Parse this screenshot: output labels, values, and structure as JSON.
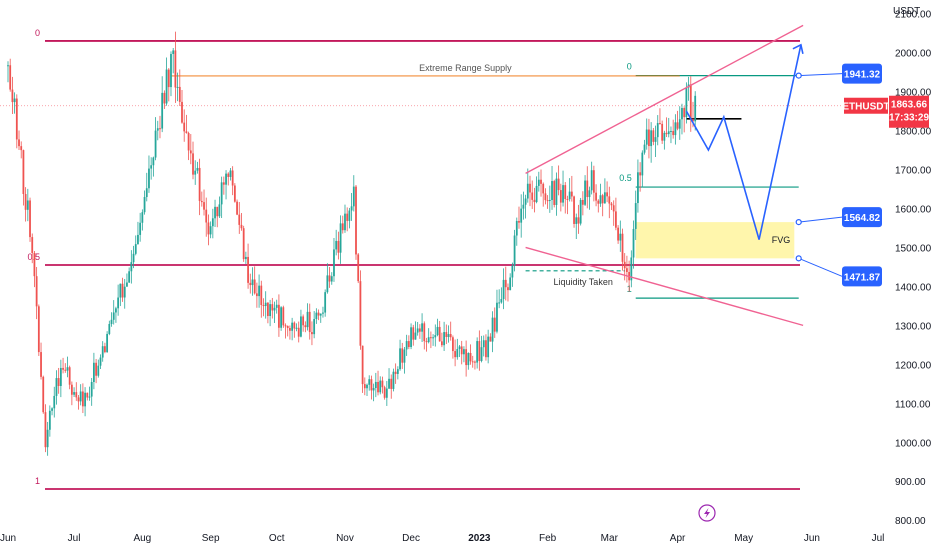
{
  "chart_data": {
    "type": "candlestick",
    "unit_label": "USDT",
    "symbol": "ETHUSDT",
    "current_price": "1863.66",
    "countdown": "17:33:29",
    "y_ticks": [
      2100,
      2000,
      1900,
      1800,
      1700,
      1600,
      1500,
      1400,
      1300,
      1200,
      1100,
      1000,
      900,
      800
    ],
    "y_tick_labels": [
      "2100.00",
      "2000.00",
      "1900.00",
      "1800.00",
      "1700.00",
      "1600.00",
      "1500.00",
      "1400.00",
      "1300.00",
      "1200.00",
      "1100.00",
      "1000.00",
      "900.00",
      "800.00"
    ],
    "ylim": [
      780,
      2135
    ],
    "x_labels": [
      "Jun",
      "Jul",
      "Aug",
      "Sep",
      "Oct",
      "Nov",
      "Dec",
      "2023",
      "Feb",
      "Mar",
      "Apr",
      "May",
      "Jun",
      "Jul"
    ],
    "x_label_dates": [
      "2022-06-01",
      "2022-07-01",
      "2022-08-01",
      "2022-09-01",
      "2022-10-01",
      "2022-11-01",
      "2022-12-01",
      "2023-01-01",
      "2023-02-01",
      "2023-03-01",
      "2023-04-01",
      "2023-05-01",
      "2023-06-01",
      "2023-07-01"
    ],
    "price_anchors": [
      [
        "2022-06-01",
        1950
      ],
      [
        "2022-06-05",
        1800
      ],
      [
        "2022-06-12",
        1500
      ],
      [
        "2022-06-18",
        1000
      ],
      [
        "2022-06-25",
        1200
      ],
      [
        "2022-07-05",
        1100
      ],
      [
        "2022-07-15",
        1250
      ],
      [
        "2022-07-26",
        1450
      ],
      [
        "2022-08-05",
        1700
      ],
      [
        "2022-08-14",
        1990
      ],
      [
        "2022-08-20",
        1800
      ],
      [
        "2022-08-31",
        1550
      ],
      [
        "2022-09-10",
        1700
      ],
      [
        "2022-09-18",
        1430
      ],
      [
        "2022-09-30",
        1330
      ],
      [
        "2022-10-10",
        1300
      ],
      [
        "2022-10-20",
        1310
      ],
      [
        "2022-10-31",
        1560
      ],
      [
        "2022-11-05",
        1620
      ],
      [
        "2022-11-09",
        1150
      ],
      [
        "2022-11-20",
        1130
      ],
      [
        "2022-11-30",
        1270
      ],
      [
        "2022-12-15",
        1280
      ],
      [
        "2022-12-25",
        1210
      ],
      [
        "2023-01-05",
        1250
      ],
      [
        "2023-01-14",
        1420
      ],
      [
        "2023-01-22",
        1640
      ],
      [
        "2023-02-05",
        1650
      ],
      [
        "2023-02-15",
        1580
      ],
      [
        "2023-02-20",
        1680
      ],
      [
        "2023-03-01",
        1620
      ],
      [
        "2023-03-10",
        1440
      ],
      [
        "2023-03-14",
        1660
      ],
      [
        "2023-03-18",
        1800
      ],
      [
        "2023-03-31",
        1820
      ],
      [
        "2023-04-05",
        1880
      ],
      [
        "2023-04-09",
        1864
      ]
    ],
    "horizontal_lines": [
      {
        "label": "0",
        "price": 2030,
        "color": "#c2185b"
      },
      {
        "label": "0.5",
        "price": 1455,
        "color": "#c2185b"
      },
      {
        "label": "1",
        "price": 880,
        "color": "#c2185b"
      }
    ],
    "fib_levels": [
      {
        "label": "0",
        "price": 1941
      },
      {
        "label": "0.5",
        "price": 1655
      },
      {
        "label": "1",
        "price": 1370
      }
    ],
    "supply_line": {
      "label": "Extreme Range Supply",
      "price": 1940,
      "start": "2022-08-14",
      "end": "2023-04-02"
    },
    "liquidity_line": {
      "label": "Liquidity Taken",
      "price": 1440,
      "start": "2023-01-22",
      "end": "2023-03-08"
    },
    "black_level": {
      "price": 1830,
      "start": "2023-04-05",
      "end": "2023-04-30"
    },
    "fvg": {
      "label": "FVG",
      "top": 1565,
      "bottom": 1472,
      "start": "2023-03-13",
      "end": "2023-05-24"
    },
    "price_tags": [
      {
        "value": "1941.32",
        "price": 1941
      },
      {
        "value": "1564.82",
        "price": 1565
      },
      {
        "value": "1471.87",
        "price": 1472
      }
    ],
    "wedge_lines": [
      {
        "from": [
          "2023-01-22",
          1690
        ],
        "to": [
          "2023-05-28",
          2070
        ]
      },
      {
        "from": [
          "2023-01-22",
          1500
        ],
        "to": [
          "2023-05-28",
          1300
        ]
      }
    ],
    "projection_path": [
      [
        "2023-04-05",
        1850
      ],
      [
        "2023-04-15",
        1750
      ],
      [
        "2023-04-22",
        1835
      ],
      [
        "2023-05-08",
        1520
      ],
      [
        "2023-05-27",
        2020
      ]
    ],
    "colors": {
      "up": "#26a69a",
      "down": "#ef5350",
      "level": "#c2185b",
      "fib": "#089981",
      "projection": "#2962ff",
      "wedge": "#f06292",
      "fvg": "#fff59d",
      "tag": "#2962ff",
      "symbol_tag": "#f23645"
    },
    "watermark_icon": "lightning-icon"
  }
}
